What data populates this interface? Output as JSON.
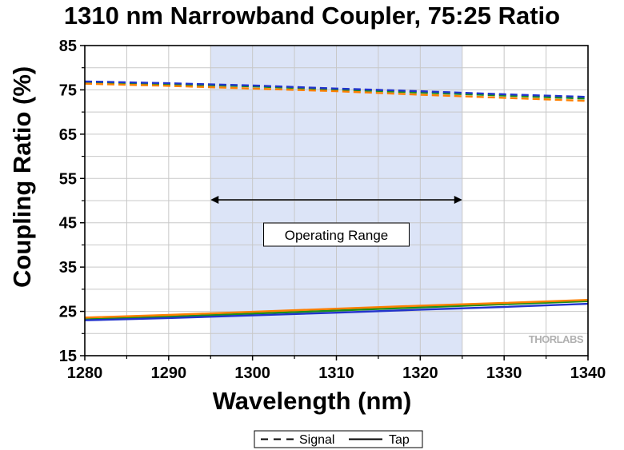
{
  "chart_data": {
    "type": "line",
    "title": "1310 nm Narrowband Coupler, 75:25 Ratio",
    "xlabel": "Wavelength (nm)",
    "ylabel": "Coupling Ratio (%)",
    "xlim": [
      1280,
      1340
    ],
    "ylim": [
      15,
      85
    ],
    "xticks": [
      1280,
      1290,
      1300,
      1310,
      1320,
      1330,
      1340
    ],
    "yticks": [
      15,
      25,
      35,
      45,
      55,
      65,
      75,
      85
    ],
    "grid": true,
    "legend": {
      "placement": "bottom-center",
      "entries": [
        {
          "label": "Signal",
          "style": "dashed"
        },
        {
          "label": "Tap",
          "style": "solid"
        }
      ]
    },
    "annotation": {
      "label": "Operating Range",
      "x_range": [
        1295,
        1325
      ],
      "band_color": "#dce4f7"
    },
    "watermark": "THORLABS",
    "series": [
      {
        "role": "signal",
        "color": "#1a8f1a",
        "style": "dashed",
        "x": [
          1280,
          1290,
          1300,
          1310,
          1320,
          1330,
          1340
        ],
        "y": [
          76.8,
          76.3,
          75.8,
          75.1,
          74.4,
          73.7,
          73.0
        ]
      },
      {
        "role": "signal",
        "color": "#2233cc",
        "style": "dashed",
        "x": [
          1280,
          1290,
          1300,
          1310,
          1320,
          1330,
          1340
        ],
        "y": [
          76.9,
          76.5,
          76.0,
          75.3,
          74.7,
          74.0,
          73.4
        ]
      },
      {
        "role": "signal",
        "color": "#ff7f00",
        "style": "dashed",
        "x": [
          1280,
          1290,
          1300,
          1310,
          1320,
          1330,
          1340
        ],
        "y": [
          76.4,
          75.9,
          75.3,
          74.7,
          73.9,
          73.2,
          72.5
        ]
      },
      {
        "role": "tap",
        "color": "#1a8f1a",
        "style": "solid",
        "x": [
          1280,
          1290,
          1300,
          1310,
          1320,
          1330,
          1340
        ],
        "y": [
          23.2,
          23.8,
          24.5,
          25.2,
          25.9,
          26.6,
          27.3
        ]
      },
      {
        "role": "tap",
        "color": "#2233cc",
        "style": "solid",
        "x": [
          1280,
          1290,
          1300,
          1310,
          1320,
          1330,
          1340
        ],
        "y": [
          23.0,
          23.5,
          24.1,
          24.7,
          25.4,
          26.0,
          26.7
        ]
      },
      {
        "role": "tap",
        "color": "#ff7f00",
        "style": "solid",
        "x": [
          1280,
          1290,
          1300,
          1310,
          1320,
          1330,
          1340
        ],
        "y": [
          23.6,
          24.2,
          24.9,
          25.6,
          26.3,
          26.9,
          27.6
        ]
      }
    ]
  }
}
